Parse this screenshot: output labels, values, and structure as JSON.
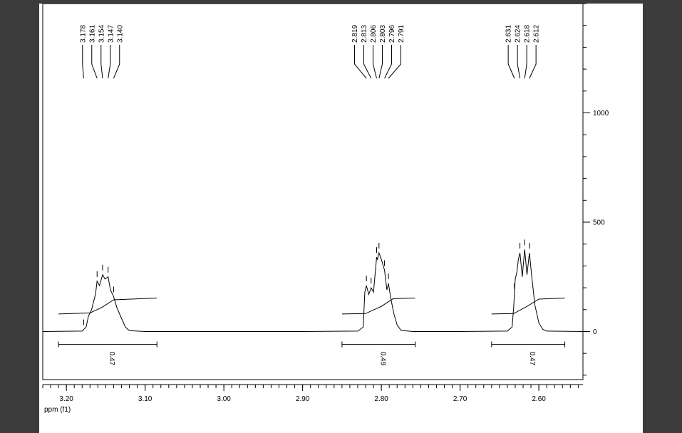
{
  "chart_data": {
    "type": "nmr",
    "x_label": "ppm (f1)",
    "xlim": [
      3.23,
      2.544
    ],
    "xticks": [
      {
        "value": 3.2,
        "label": "3.20"
      },
      {
        "value": 3.1,
        "label": "3.10"
      },
      {
        "value": 3,
        "label": "3.00"
      },
      {
        "value": 2.9,
        "label": "2.90"
      },
      {
        "value": 2.8,
        "label": "2.80"
      },
      {
        "value": 2.7,
        "label": "2.70"
      },
      {
        "value": 2.6,
        "label": "2.60"
      }
    ],
    "xminor": 0.01,
    "ylim": [
      -220,
      1500
    ],
    "yticks": [
      0,
      500,
      1000
    ],
    "yminor": 100,
    "color": "#000000",
    "spectrum": {
      "x": [
        3.23,
        3.18,
        3.175,
        3.172,
        3.168,
        3.163,
        3.161,
        3.158,
        3.154,
        3.151,
        3.147,
        3.144,
        3.14,
        3.136,
        3.13,
        3.125,
        3.12,
        3.1,
        2.9,
        2.83,
        2.823,
        2.821,
        2.819,
        2.816,
        2.813,
        2.81,
        2.806,
        2.805,
        2.803,
        2.8,
        2.796,
        2.793,
        2.791,
        2.788,
        2.784,
        2.78,
        2.775,
        2.76,
        2.7,
        2.64,
        2.634,
        2.632,
        2.63,
        2.628,
        2.626,
        2.624,
        2.621,
        2.618,
        2.615,
        2.612,
        2.609,
        2.605,
        2.6,
        2.595,
        2.59,
        2.544
      ],
      "y": [
        0,
        2,
        20,
        70,
        100,
        170,
        230,
        210,
        260,
        240,
        250,
        190,
        160,
        110,
        60,
        20,
        4,
        0,
        0,
        2,
        20,
        180,
        210,
        170,
        200,
        180,
        340,
        330,
        360,
        330,
        280,
        190,
        220,
        150,
        80,
        30,
        5,
        0,
        0,
        2,
        20,
        110,
        240,
        270,
        330,
        360,
        250,
        375,
        260,
        360,
        250,
        120,
        40,
        10,
        2,
        0
      ]
    },
    "multiplets": [
      {
        "peaks": [
          3.178,
          3.161,
          3.154,
          3.147,
          {
            "value": 3.14,
            "label": "3.140"
          }
        ],
        "integral": 0.47,
        "range": [
          3.21,
          3.085
        ],
        "curve": {
          "x": [
            3.21,
            3.17,
            3.155,
            3.14,
            3.085
          ],
          "y": [
            80,
            85,
            110,
            145,
            153
          ]
        }
      },
      {
        "peaks": [
          2.819,
          2.813,
          2.806,
          2.803,
          2.796,
          2.791
        ],
        "integral": 0.49,
        "range": [
          2.85,
          2.757
        ],
        "curve": {
          "x": [
            2.85,
            2.82,
            2.8,
            2.785,
            2.757
          ],
          "y": [
            80,
            82,
            115,
            150,
            153
          ]
        }
      },
      {
        "peaks": [
          2.631,
          2.624,
          2.618,
          2.612
        ],
        "integral": 0.47,
        "range": [
          2.66,
          2.567
        ],
        "curve": {
          "x": [
            2.66,
            2.632,
            2.615,
            2.6,
            2.567
          ],
          "y": [
            80,
            82,
            115,
            148,
            153
          ]
        }
      }
    ],
    "integral_bracket_level": -59
  }
}
